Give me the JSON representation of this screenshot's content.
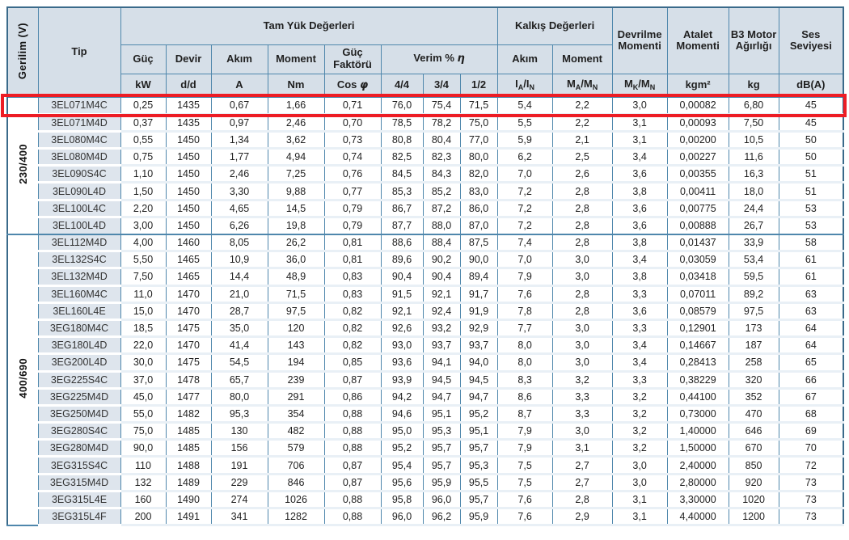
{
  "header": {
    "gerilim": "Gerilim (V)",
    "tip": "Tip",
    "tam_yuk": "Tam Yük Değerleri",
    "kalkis": "Kalkış Değerleri",
    "devrilme": "Devrilme Momenti",
    "atalet": "Atalet Momenti",
    "b3": "B3 Motor Ağırlığı",
    "ses": "Ses Seviyesi",
    "guc": "Güç",
    "devir": "Devir",
    "akim": "Akım",
    "moment": "Moment",
    "guc_faktoru": "Güç Faktörü",
    "verim": {
      "p1": "Verim % ",
      "g": "η"
    },
    "kalkis_akim": "Akım",
    "kalkis_moment": "Moment",
    "units": {
      "kw": "kW",
      "dd": "d/d",
      "a": "A",
      "nm": "Nm",
      "cos": {
        "p1": "Cos ",
        "g": "φ"
      },
      "q44": "4/4",
      "q34": "3/4",
      "q12": "1/2",
      "ia_in": {
        "p1": "I",
        "s1": "A",
        "p2": "/I",
        "s2": "N"
      },
      "ma_mn": {
        "p1": "M",
        "s1": "A",
        "p2": "/M",
        "s2": "N"
      },
      "mk_mn": {
        "p1": "M",
        "s1": "K",
        "p2": "/M",
        "s2": "N"
      },
      "kgm2": "kgm²",
      "kg": "kg",
      "dba": "dB(A)"
    }
  },
  "groups": [
    {
      "voltage": "230/400",
      "rows": [
        [
          "3EL071M4C",
          "0,25",
          "1435",
          "0,67",
          "1,66",
          "0,71",
          "76,0",
          "75,4",
          "71,5",
          "5,4",
          "2,2",
          "3,0",
          "0,00082",
          "6,80",
          "45"
        ],
        [
          "3EL071M4D",
          "0,37",
          "1435",
          "0,97",
          "2,46",
          "0,70",
          "78,5",
          "78,2",
          "75,0",
          "5,5",
          "2,2",
          "3,1",
          "0,00093",
          "7,50",
          "45"
        ],
        [
          "3EL080M4C",
          "0,55",
          "1450",
          "1,34",
          "3,62",
          "0,73",
          "80,8",
          "80,4",
          "77,0",
          "5,9",
          "2,1",
          "3,1",
          "0,00200",
          "10,5",
          "50"
        ],
        [
          "3EL080M4D",
          "0,75",
          "1450",
          "1,77",
          "4,94",
          "0,74",
          "82,5",
          "82,3",
          "80,0",
          "6,2",
          "2,5",
          "3,4",
          "0,00227",
          "11,6",
          "50"
        ],
        [
          "3EL090S4C",
          "1,10",
          "1450",
          "2,46",
          "7,25",
          "0,76",
          "84,5",
          "84,3",
          "82,0",
          "7,0",
          "2,6",
          "3,6",
          "0,00355",
          "16,3",
          "51"
        ],
        [
          "3EL090L4D",
          "1,50",
          "1450",
          "3,30",
          "9,88",
          "0,77",
          "85,3",
          "85,2",
          "83,0",
          "7,2",
          "2,8",
          "3,8",
          "0,00411",
          "18,0",
          "51"
        ],
        [
          "3EL100L4C",
          "2,20",
          "1450",
          "4,65",
          "14,5",
          "0,79",
          "86,7",
          "87,2",
          "86,0",
          "7,2",
          "2,8",
          "3,6",
          "0,00775",
          "24,4",
          "53"
        ],
        [
          "3EL100L4D",
          "3,00",
          "1450",
          "6,26",
          "19,8",
          "0,79",
          "87,7",
          "88,0",
          "87,0",
          "7,2",
          "2,8",
          "3,6",
          "0,00888",
          "26,7",
          "53"
        ]
      ]
    },
    {
      "voltage": "400/690",
      "rows": [
        [
          "3EL112M4D",
          "4,00",
          "1460",
          "8,05",
          "26,2",
          "0,81",
          "88,6",
          "88,4",
          "87,5",
          "7,4",
          "2,8",
          "3,8",
          "0,01437",
          "33,9",
          "58"
        ],
        [
          "3EL132S4C",
          "5,50",
          "1465",
          "10,9",
          "36,0",
          "0,81",
          "89,6",
          "90,2",
          "90,0",
          "7,0",
          "3,0",
          "3,4",
          "0,03059",
          "53,4",
          "61"
        ],
        [
          "3EL132M4D",
          "7,50",
          "1465",
          "14,4",
          "48,9",
          "0,83",
          "90,4",
          "90,4",
          "89,4",
          "7,9",
          "3,0",
          "3,8",
          "0,03418",
          "59,5",
          "61"
        ],
        [
          "3EL160M4C",
          "11,0",
          "1470",
          "21,0",
          "71,5",
          "0,83",
          "91,5",
          "92,1",
          "91,7",
          "7,6",
          "2,8",
          "3,3",
          "0,07011",
          "89,2",
          "63"
        ],
        [
          "3EL160L4E",
          "15,0",
          "1470",
          "28,7",
          "97,5",
          "0,82",
          "92,1",
          "92,4",
          "91,9",
          "7,8",
          "2,8",
          "3,6",
          "0,08579",
          "97,5",
          "63"
        ],
        [
          "3EG180M4C",
          "18,5",
          "1475",
          "35,0",
          "120",
          "0,82",
          "92,6",
          "93,2",
          "92,9",
          "7,7",
          "3,0",
          "3,3",
          "0,12901",
          "173",
          "64"
        ],
        [
          "3EG180L4D",
          "22,0",
          "1470",
          "41,4",
          "143",
          "0,82",
          "93,0",
          "93,7",
          "93,7",
          "8,0",
          "3,0",
          "3,4",
          "0,14667",
          "187",
          "64"
        ],
        [
          "3EG200L4D",
          "30,0",
          "1475",
          "54,5",
          "194",
          "0,85",
          "93,6",
          "94,1",
          "94,0",
          "8,0",
          "3,0",
          "3,4",
          "0,28413",
          "258",
          "65"
        ],
        [
          "3EG225S4C",
          "37,0",
          "1478",
          "65,7",
          "239",
          "0,87",
          "93,9",
          "94,5",
          "94,5",
          "8,3",
          "3,2",
          "3,3",
          "0,38229",
          "320",
          "66"
        ],
        [
          "3EG225M4D",
          "45,0",
          "1477",
          "80,0",
          "291",
          "0,86",
          "94,2",
          "94,7",
          "94,7",
          "8,6",
          "3,3",
          "3,2",
          "0,44100",
          "352",
          "67"
        ],
        [
          "3EG250M4D",
          "55,0",
          "1482",
          "95,3",
          "354",
          "0,88",
          "94,6",
          "95,1",
          "95,2",
          "8,7",
          "3,3",
          "3,2",
          "0,73000",
          "470",
          "68"
        ],
        [
          "3EG280S4C",
          "75,0",
          "1485",
          "130",
          "482",
          "0,88",
          "95,0",
          "95,3",
          "95,1",
          "7,9",
          "3,0",
          "3,2",
          "1,40000",
          "646",
          "69"
        ],
        [
          "3EG280M4D",
          "90,0",
          "1485",
          "156",
          "579",
          "0,88",
          "95,2",
          "95,7",
          "95,7",
          "7,9",
          "3,1",
          "3,2",
          "1,50000",
          "670",
          "70"
        ],
        [
          "3EG315S4C",
          "110",
          "1488",
          "191",
          "706",
          "0,87",
          "95,4",
          "95,7",
          "95,3",
          "7,5",
          "2,7",
          "3,0",
          "2,40000",
          "850",
          "72"
        ],
        [
          "3EG315M4D",
          "132",
          "1489",
          "229",
          "846",
          "0,87",
          "95,6",
          "95,9",
          "95,5",
          "7,5",
          "2,7",
          "3,0",
          "2,80000",
          "920",
          "73"
        ],
        [
          "3EG315L4E",
          "160",
          "1490",
          "274",
          "1026",
          "0,88",
          "95,8",
          "96,0",
          "95,7",
          "7,6",
          "2,8",
          "3,1",
          "3,30000",
          "1020",
          "73"
        ],
        [
          "3EG315L4F",
          "200",
          "1491",
          "341",
          "1282",
          "0,88",
          "96,0",
          "96,2",
          "95,9",
          "7,6",
          "2,9",
          "3,1",
          "4,40000",
          "1200",
          "73"
        ]
      ]
    }
  ],
  "highlight": {
    "highlighted_row_tip": "3EL071M4C",
    "color": "#ed1c24"
  },
  "colors": {
    "header_bg": "#d6dfe8",
    "tip_cell_bg": "#dee5ed",
    "row_separator": "#e9f0f6",
    "grid_line": "#4f87ac",
    "outer_border": "#3a6a8a"
  }
}
